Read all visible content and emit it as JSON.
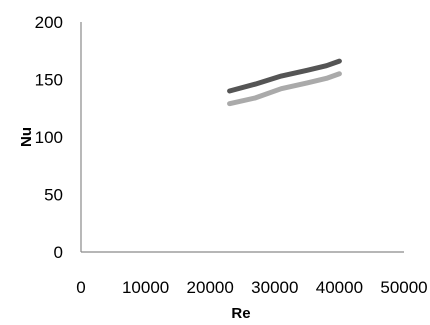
{
  "chart_data": {
    "type": "line",
    "xlabel": "Re",
    "ylabel": "Nu",
    "xlim": [
      0,
      50000
    ],
    "ylim": [
      0,
      200
    ],
    "x_ticks": [
      "0",
      "10000",
      "20000",
      "30000",
      "40000",
      "50000"
    ],
    "y_ticks": [
      "0",
      "50",
      "150",
      "200"
    ],
    "y_tick_partial": "100",
    "grid": false,
    "legend": "none",
    "series": [
      {
        "color": "#555555",
        "points": [
          {
            "x": 23000,
            "y": 140
          },
          {
            "x": 27000,
            "y": 146
          },
          {
            "x": 31000,
            "y": 153
          },
          {
            "x": 35000,
            "y": 158
          },
          {
            "x": 38000,
            "y": 162
          },
          {
            "x": 40000,
            "y": 166
          }
        ]
      },
      {
        "color": "#aaaaaa",
        "points": [
          {
            "x": 23000,
            "y": 129
          },
          {
            "x": 27000,
            "y": 134
          },
          {
            "x": 31000,
            "y": 142
          },
          {
            "x": 35000,
            "y": 147
          },
          {
            "x": 38000,
            "y": 151
          },
          {
            "x": 40000,
            "y": 155
          }
        ]
      }
    ]
  }
}
